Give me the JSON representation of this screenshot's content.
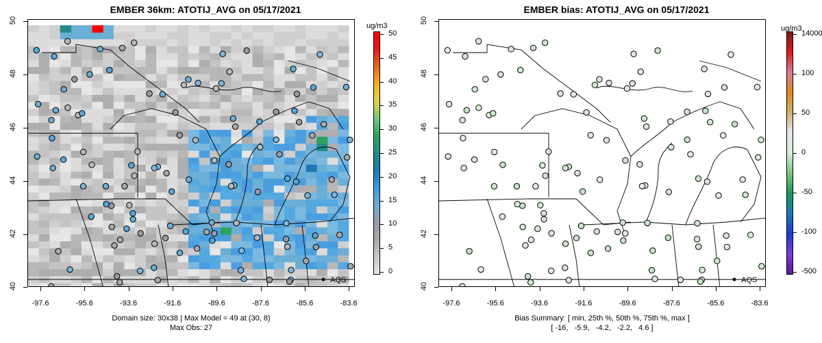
{
  "left": {
    "title": "EMBER 36km: ATOTIJ_AVG on 05/17/2021",
    "unit": "ug/m3",
    "yticks": [
      "50",
      "48",
      "46",
      "44",
      "42",
      "40"
    ],
    "xticks": [
      "-97.6",
      "-95.6",
      "-93.6",
      "-91.6",
      "-89.6",
      "-87.6",
      "-85.6",
      "-83.6"
    ],
    "colorbar_labels": [
      "50",
      "45",
      "40",
      "35",
      "30",
      "25",
      "20",
      "15",
      "10",
      "5",
      "0"
    ],
    "colorbar_colors": [
      "#e6e6e6",
      "#c9c9c9",
      "#a8a8a8",
      "#9a9aa8",
      "#6baed6",
      "#3a9ae0",
      "#1f78b4",
      "#238b8b",
      "#2ca25f",
      "#78c679",
      "#e5d44a",
      "#f2b01e",
      "#e66a1e",
      "#e31a1c",
      "#ff0000"
    ],
    "footer_line1": "Domain size: 30x38 | Max Model = 49 at (30, 8)",
    "footer_line2": "Max Obs: 27",
    "legend_label": "AQS"
  },
  "right": {
    "title": "EMBER bias: ATOTIJ_AVG on 05/17/2021",
    "unit": "ug/m3",
    "yticks": [
      "50",
      "48",
      "46",
      "44",
      "42",
      "40"
    ],
    "xticks": [
      "-97.6",
      "-95.6",
      "-93.6",
      "-91.6",
      "-89.6",
      "-87.6",
      "-85.6",
      "-83.6"
    ],
    "colorbar_labels": [
      "14000",
      "100",
      "50",
      "0",
      "-50",
      "-100",
      "-500"
    ],
    "colorbar_colors": [
      "#7a1a1a",
      "#e31a1c",
      "#d97a9a",
      "#e08a1e",
      "#d0b070",
      "#e8e8e8",
      "#d6ecd6",
      "#7cc47c",
      "#1a9a5a",
      "#1a7ab8",
      "#1a3ad8",
      "#7a3ad8",
      "#5a1a9a"
    ],
    "footer_line1": "Bias Summary: [ min, 25th %, 50th %, 75th %, max ]",
    "footer_line2": "[ -16,   -5.9,   -4.2,   -2.2,   4.6 ]",
    "legend_label": "AQS"
  }
}
